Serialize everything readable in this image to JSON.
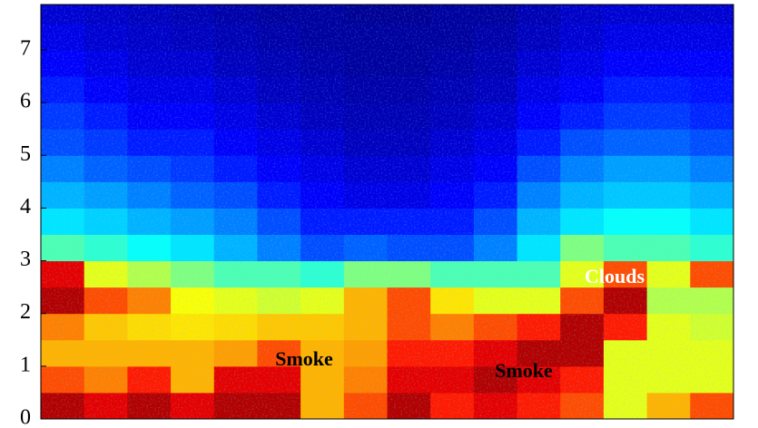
{
  "chart_data": {
    "type": "heatmap",
    "colormap": "jet",
    "ylim": [
      0,
      7.86
    ],
    "yticks": [
      0,
      1,
      2,
      3,
      4,
      5,
      6,
      7
    ],
    "y": [
      0,
      0.5,
      1,
      1.5,
      2,
      2.5,
      3,
      3.5,
      4,
      4.5,
      5,
      5.5,
      6,
      6.5,
      7,
      7.5
    ],
    "y_step": 0.5,
    "zlim": [
      0,
      1
    ],
    "values": [
      [
        0.95,
        0.9,
        0.95,
        0.9,
        0.95,
        0.95,
        0.7,
        0.8,
        0.95,
        0.85,
        0.9,
        0.85,
        0.8,
        0.6,
        0.7,
        0.8
      ],
      [
        0.8,
        0.75,
        0.85,
        0.7,
        0.9,
        0.9,
        0.7,
        0.75,
        0.9,
        0.9,
        0.95,
        0.9,
        0.85,
        0.6,
        0.6,
        0.6
      ],
      [
        0.7,
        0.7,
        0.7,
        0.7,
        0.72,
        0.8,
        0.7,
        0.72,
        0.85,
        0.85,
        0.9,
        0.95,
        0.95,
        0.6,
        0.6,
        0.6
      ],
      [
        0.75,
        0.68,
        0.66,
        0.65,
        0.66,
        0.68,
        0.68,
        0.7,
        0.8,
        0.75,
        0.8,
        0.85,
        0.95,
        0.85,
        0.6,
        0.58
      ],
      [
        0.95,
        0.8,
        0.75,
        0.62,
        0.6,
        0.58,
        0.6,
        0.7,
        0.8,
        0.65,
        0.6,
        0.6,
        0.8,
        0.95,
        0.55,
        0.55
      ],
      [
        0.9,
        0.6,
        0.55,
        0.5,
        0.45,
        0.45,
        0.42,
        0.5,
        0.5,
        0.45,
        0.45,
        0.45,
        0.6,
        0.8,
        0.6,
        0.8
      ],
      [
        0.45,
        0.42,
        0.38,
        0.35,
        0.3,
        0.25,
        0.2,
        0.22,
        0.2,
        0.2,
        0.25,
        0.35,
        0.5,
        0.45,
        0.45,
        0.42
      ],
      [
        0.35,
        0.33,
        0.3,
        0.28,
        0.25,
        0.2,
        0.15,
        0.15,
        0.15,
        0.15,
        0.2,
        0.3,
        0.35,
        0.38,
        0.38,
        0.35
      ],
      [
        0.3,
        0.28,
        0.25,
        0.22,
        0.2,
        0.15,
        0.12,
        0.1,
        0.1,
        0.12,
        0.15,
        0.25,
        0.3,
        0.32,
        0.32,
        0.3
      ],
      [
        0.25,
        0.22,
        0.2,
        0.18,
        0.15,
        0.12,
        0.1,
        0.08,
        0.08,
        0.1,
        0.12,
        0.2,
        0.25,
        0.28,
        0.28,
        0.25
      ],
      [
        0.2,
        0.18,
        0.15,
        0.15,
        0.12,
        0.1,
        0.08,
        0.06,
        0.06,
        0.08,
        0.1,
        0.15,
        0.2,
        0.22,
        0.22,
        0.2
      ],
      [
        0.18,
        0.15,
        0.12,
        0.12,
        0.1,
        0.08,
        0.06,
        0.05,
        0.05,
        0.06,
        0.08,
        0.12,
        0.15,
        0.18,
        0.18,
        0.16
      ],
      [
        0.15,
        0.12,
        0.1,
        0.1,
        0.08,
        0.06,
        0.05,
        0.04,
        0.04,
        0.05,
        0.06,
        0.1,
        0.12,
        0.15,
        0.15,
        0.14
      ],
      [
        0.12,
        0.1,
        0.08,
        0.08,
        0.06,
        0.05,
        0.04,
        0.03,
        0.03,
        0.04,
        0.05,
        0.08,
        0.1,
        0.12,
        0.12,
        0.12
      ],
      [
        0.1,
        0.08,
        0.07,
        0.06,
        0.05,
        0.04,
        0.03,
        0.03,
        0.03,
        0.03,
        0.04,
        0.06,
        0.08,
        0.1,
        0.1,
        0.1
      ],
      [
        0.08,
        0.07,
        0.06,
        0.05,
        0.04,
        0.03,
        0.03,
        0.02,
        0.02,
        0.03,
        0.03,
        0.05,
        0.07,
        0.08,
        0.08,
        0.08
      ]
    ],
    "annotations": [
      {
        "text": "Smoke",
        "color": "#000000"
      },
      {
        "text": "Smoke",
        "color": "#000000"
      },
      {
        "text": "Clouds",
        "color": "#ffffff"
      }
    ]
  }
}
